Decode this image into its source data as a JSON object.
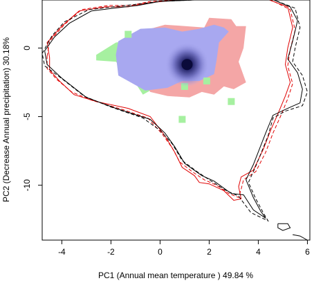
{
  "chart_data": {
    "type": "contour-density",
    "xlabel": "PC1 (Annual mean temperature ) 49.84 %",
    "ylabel": "PC2 (Decrease Annual precipitation) 30.18%",
    "xlim": [
      -4.8,
      6.1
    ],
    "ylim": [
      -14.0,
      3.5
    ],
    "x_ticks": [
      -4,
      -2,
      0,
      2,
      4,
      6
    ],
    "x_tick_labels": [
      "-4",
      "-2",
      "0",
      "2",
      "4",
      "6"
    ],
    "y_ticks": [
      0,
      -5,
      -10
    ],
    "y_tick_labels": [
      "0",
      "-5",
      "-10"
    ],
    "colors": {
      "blue_region": "#a8a8f0",
      "red_region": "#f4a6a6",
      "green_region": "#a6f0a0",
      "density_peak": "#0a0a3a",
      "red_outline": "#e00000",
      "black_outline": "#000000"
    },
    "density_peak": {
      "x": 1.1,
      "y": -1.2
    },
    "regions": {
      "green": [
        [
          -2.6,
          -0.5
        ],
        [
          -1.8,
          0.4
        ],
        [
          -1.0,
          0.6
        ],
        [
          -0.3,
          1.4
        ],
        [
          0.5,
          1.5
        ],
        [
          1.2,
          1.0
        ],
        [
          1.0,
          -0.8
        ],
        [
          0.2,
          -2.5
        ],
        [
          -0.7,
          -3.4
        ],
        [
          -1.2,
          -2.0
        ],
        [
          -1.8,
          -1.0
        ],
        [
          -2.6,
          -0.9
        ]
      ],
      "red": [
        [
          -0.6,
          1.3
        ],
        [
          0.2,
          1.7
        ],
        [
          1.8,
          1.5
        ],
        [
          2.0,
          2.2
        ],
        [
          2.9,
          2.1
        ],
        [
          3.1,
          1.6
        ],
        [
          3.5,
          1.6
        ],
        [
          3.4,
          0.0
        ],
        [
          3.2,
          -1.0
        ],
        [
          3.5,
          -2.5
        ],
        [
          3.0,
          -3.0
        ],
        [
          2.6,
          -2.8
        ],
        [
          2.2,
          -3.4
        ],
        [
          1.7,
          -3.2
        ],
        [
          1.2,
          -3.6
        ],
        [
          0.3,
          -3.5
        ],
        [
          -0.4,
          -3.2
        ],
        [
          -0.8,
          -2.0
        ],
        [
          -1.2,
          0.4
        ]
      ],
      "blue": [
        [
          -1.7,
          0.5
        ],
        [
          -0.8,
          1.4
        ],
        [
          0.2,
          1.5
        ],
        [
          0.9,
          1.2
        ],
        [
          1.6,
          1.4
        ],
        [
          2.2,
          1.7
        ],
        [
          2.6,
          1.5
        ],
        [
          2.8,
          1.2
        ],
        [
          2.4,
          0.4
        ],
        [
          2.3,
          -0.9
        ],
        [
          2.2,
          -1.9
        ],
        [
          1.6,
          -2.4
        ],
        [
          0.9,
          -2.4
        ],
        [
          0.3,
          -2.9
        ],
        [
          -0.6,
          -3.1
        ],
        [
          -1.1,
          -2.6
        ],
        [
          -1.7,
          -2.0
        ],
        [
          -1.8,
          -0.5
        ]
      ],
      "green_blobs": [
        [
          -1.3,
          1.0
        ],
        [
          1.9,
          -2.4
        ],
        [
          1.0,
          -2.8
        ],
        [
          0.9,
          -5.2
        ],
        [
          2.9,
          -3.9
        ]
      ]
    },
    "outlines": {
      "black_solid": [
        [
          -4.7,
          -0.2
        ],
        [
          -4.3,
          0.8
        ],
        [
          -3.7,
          1.8
        ],
        [
          -2.8,
          2.7
        ],
        [
          -1.9,
          2.9
        ],
        [
          -0.9,
          3.1
        ],
        [
          0.0,
          3.4
        ],
        [
          1.4,
          3.5
        ],
        [
          3.0,
          3.5
        ],
        [
          4.5,
          3.6
        ],
        [
          5.3,
          3.0
        ],
        [
          5.6,
          2.0
        ],
        [
          5.4,
          0.5
        ],
        [
          5.2,
          -0.8
        ],
        [
          5.6,
          -1.8
        ],
        [
          5.8,
          -3.0
        ],
        [
          5.7,
          -4.0
        ],
        [
          5.2,
          -4.4
        ],
        [
          4.6,
          -4.9
        ],
        [
          4.3,
          -6.2
        ],
        [
          3.8,
          -8.5
        ],
        [
          3.5,
          -9.6
        ],
        [
          3.8,
          -10.9
        ],
        [
          4.1,
          -11.9
        ],
        [
          4.3,
          -12.4
        ],
        [
          3.8,
          -11.8
        ],
        [
          3.4,
          -10.7
        ],
        [
          2.9,
          -10.6
        ],
        [
          2.2,
          -9.7
        ],
        [
          1.7,
          -9.3
        ],
        [
          1.0,
          -8.4
        ],
        [
          0.6,
          -7.2
        ],
        [
          0.2,
          -6.2
        ],
        [
          -0.4,
          -5.2
        ],
        [
          -1.8,
          -4.4
        ],
        [
          -3.0,
          -3.6
        ],
        [
          -4.0,
          -2.2
        ],
        [
          -4.6,
          -1.2
        ],
        [
          -4.7,
          -0.2
        ]
      ],
      "black_dashed": [
        [
          -4.8,
          -0.4
        ],
        [
          -4.4,
          0.9
        ],
        [
          -3.9,
          1.9
        ],
        [
          -2.9,
          2.8
        ],
        [
          -1.9,
          3.0
        ],
        [
          -0.9,
          3.2
        ],
        [
          0.0,
          3.4
        ],
        [
          1.4,
          3.5
        ],
        [
          3.0,
          3.5
        ],
        [
          4.5,
          3.6
        ],
        [
          5.5,
          2.9
        ],
        [
          5.7,
          1.5
        ],
        [
          5.5,
          0.0
        ],
        [
          5.4,
          -1.0
        ],
        [
          5.8,
          -2.0
        ],
        [
          6.0,
          -3.2
        ],
        [
          5.8,
          -4.2
        ],
        [
          5.1,
          -4.6
        ],
        [
          4.6,
          -5.1
        ],
        [
          4.4,
          -6.4
        ],
        [
          3.9,
          -8.6
        ],
        [
          3.6,
          -9.8
        ],
        [
          3.9,
          -11.0
        ],
        [
          4.2,
          -12.0
        ],
        [
          4.4,
          -12.6
        ],
        [
          3.7,
          -12.0
        ],
        [
          3.2,
          -10.8
        ],
        [
          2.7,
          -10.4
        ],
        [
          2.0,
          -9.6
        ],
        [
          1.5,
          -9.0
        ],
        [
          0.9,
          -8.2
        ],
        [
          0.5,
          -7.0
        ],
        [
          0.0,
          -6.0
        ],
        [
          -0.7,
          -5.1
        ],
        [
          -2.0,
          -4.3
        ],
        [
          -3.1,
          -3.5
        ],
        [
          -4.1,
          -2.1
        ],
        [
          -4.7,
          -1.3
        ],
        [
          -4.8,
          -0.4
        ]
      ],
      "red_solid": [
        [
          -4.5,
          -0.7
        ],
        [
          -4.6,
          0.4
        ],
        [
          -4.0,
          1.6
        ],
        [
          -3.3,
          2.7
        ],
        [
          -2.2,
          3.0
        ],
        [
          -1.3,
          3.0
        ],
        [
          -0.5,
          3.3
        ],
        [
          0.8,
          3.5
        ],
        [
          2.5,
          3.5
        ],
        [
          4.3,
          3.6
        ],
        [
          5.2,
          3.0
        ],
        [
          5.4,
          1.5
        ],
        [
          5.2,
          0.0
        ],
        [
          5.1,
          -1.2
        ],
        [
          5.3,
          -2.5
        ],
        [
          5.1,
          -3.5
        ],
        [
          4.8,
          -4.8
        ],
        [
          4.5,
          -6.0
        ],
        [
          4.2,
          -7.4
        ],
        [
          3.8,
          -8.9
        ],
        [
          3.3,
          -9.4
        ],
        [
          3.2,
          -10.1
        ],
        [
          3.3,
          -11.0
        ],
        [
          3.0,
          -11.1
        ],
        [
          2.6,
          -10.4
        ],
        [
          2.0,
          -9.9
        ],
        [
          1.6,
          -9.8
        ],
        [
          1.4,
          -9.3
        ],
        [
          0.9,
          -8.7
        ],
        [
          0.6,
          -7.6
        ],
        [
          0.2,
          -6.4
        ],
        [
          -0.4,
          -5.0
        ],
        [
          -1.3,
          -4.4
        ],
        [
          -2.6,
          -3.9
        ],
        [
          -3.5,
          -3.4
        ],
        [
          -4.1,
          -2.4
        ],
        [
          -4.5,
          -1.6
        ],
        [
          -4.5,
          -0.7
        ]
      ],
      "red_dashed": [
        [
          -4.6,
          -0.6
        ],
        [
          -4.5,
          0.5
        ],
        [
          -3.9,
          1.7
        ],
        [
          -3.2,
          2.8
        ],
        [
          -2.1,
          3.1
        ],
        [
          -1.2,
          3.1
        ],
        [
          -0.4,
          3.4
        ],
        [
          0.9,
          3.5
        ],
        [
          2.6,
          3.5
        ],
        [
          4.4,
          3.6
        ],
        [
          5.3,
          2.8
        ],
        [
          5.5,
          1.3
        ],
        [
          5.3,
          -0.1
        ],
        [
          5.2,
          -1.3
        ],
        [
          5.4,
          -2.6
        ],
        [
          5.2,
          -3.7
        ],
        [
          4.9,
          -5.0
        ],
        [
          4.6,
          -6.2
        ],
        [
          4.3,
          -7.6
        ],
        [
          3.9,
          -9.0
        ],
        [
          3.4,
          -9.6
        ],
        [
          3.3,
          -10.3
        ],
        [
          3.2,
          -10.9
        ],
        [
          2.8,
          -10.6
        ],
        [
          2.3,
          -10.0
        ],
        [
          1.8,
          -9.6
        ],
        [
          1.3,
          -9.0
        ],
        [
          0.8,
          -8.3
        ],
        [
          0.5,
          -7.3
        ],
        [
          0.1,
          -6.3
        ],
        [
          -0.5,
          -5.1
        ],
        [
          -1.5,
          -4.5
        ],
        [
          -2.8,
          -3.8
        ],
        [
          -3.6,
          -3.2
        ],
        [
          -4.2,
          -2.3
        ],
        [
          -4.6,
          -1.5
        ],
        [
          -4.6,
          -0.6
        ]
      ],
      "small_black_square": [
        [
          4.8,
          -12.8
        ],
        [
          5.2,
          -12.8
        ],
        [
          5.3,
          -13.1
        ],
        [
          5.0,
          -13.3
        ],
        [
          4.8,
          -13.1
        ],
        [
          4.8,
          -12.8
        ]
      ],
      "small_black_corner": [
        [
          5.4,
          -13.6
        ],
        [
          5.7,
          -13.7
        ],
        [
          6.0,
          -14.0
        ]
      ]
    }
  }
}
